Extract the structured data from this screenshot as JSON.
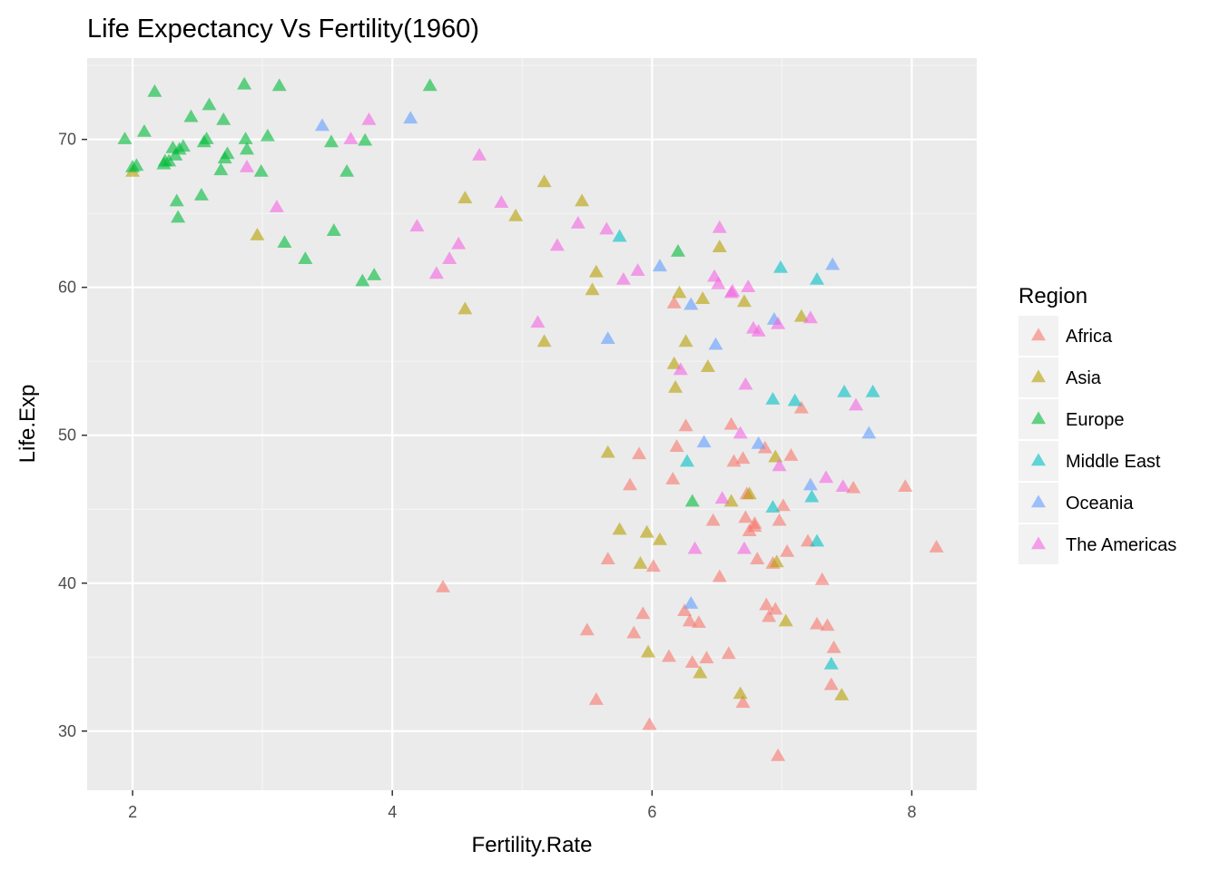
{
  "chart_data": {
    "type": "scatter",
    "title": "Life Expectancy Vs Fertility(1960)",
    "xlabel": "Fertility.Rate",
    "ylabel": "Life.Exp",
    "xlim": [
      1.65,
      8.5
    ],
    "ylim": [
      26,
      75.5
    ],
    "x_ticks": [
      2,
      4,
      6,
      8
    ],
    "y_ticks": [
      30,
      40,
      50,
      60,
      70
    ],
    "x_tick_labels": [
      "2",
      "4",
      "6",
      "8"
    ],
    "y_tick_labels": [
      "30",
      "40",
      "50",
      "60",
      "70"
    ],
    "grid": true,
    "marker": "triangle",
    "legend": {
      "title": "Region",
      "position": "right"
    },
    "series": [
      {
        "name": "Africa",
        "color": "#F8766D",
        "points": [
          [
            4.39,
            39.7
          ],
          [
            5.5,
            36.8
          ],
          [
            5.57,
            32.1
          ],
          [
            5.66,
            41.6
          ],
          [
            5.86,
            36.6
          ],
          [
            5.9,
            48.7
          ],
          [
            5.93,
            37.9
          ],
          [
            5.83,
            46.6
          ],
          [
            5.98,
            30.4
          ],
          [
            6.01,
            41.1
          ],
          [
            6.13,
            35.0
          ],
          [
            6.16,
            47.0
          ],
          [
            6.17,
            58.9
          ],
          [
            6.19,
            49.2
          ],
          [
            6.25,
            38.1
          ],
          [
            6.26,
            50.6
          ],
          [
            6.29,
            37.4
          ],
          [
            6.31,
            34.6
          ],
          [
            6.36,
            37.3
          ],
          [
            6.42,
            34.9
          ],
          [
            6.47,
            44.2
          ],
          [
            6.52,
            40.4
          ],
          [
            6.59,
            35.2
          ],
          [
            6.61,
            50.7
          ],
          [
            6.63,
            48.2
          ],
          [
            6.7,
            48.4
          ],
          [
            6.72,
            44.4
          ],
          [
            6.73,
            46.0
          ],
          [
            6.75,
            43.5
          ],
          [
            6.79,
            44.0
          ],
          [
            6.81,
            41.6
          ],
          [
            6.87,
            49.1
          ],
          [
            6.88,
            38.5
          ],
          [
            6.9,
            37.7
          ],
          [
            6.93,
            41.3
          ],
          [
            6.95,
            38.2
          ],
          [
            6.97,
            28.3
          ],
          [
            6.98,
            44.2
          ],
          [
            7.01,
            45.2
          ],
          [
            7.04,
            42.1
          ],
          [
            7.07,
            48.6
          ],
          [
            7.15,
            51.8
          ],
          [
            7.2,
            42.8
          ],
          [
            7.27,
            37.2
          ],
          [
            7.31,
            40.2
          ],
          [
            7.35,
            37.1
          ],
          [
            7.38,
            33.1
          ],
          [
            7.4,
            35.6
          ],
          [
            7.55,
            46.4
          ],
          [
            7.95,
            46.5
          ],
          [
            8.19,
            42.4
          ],
          [
            6.7,
            31.9
          ],
          [
            6.79,
            43.8
          ]
        ]
      },
      {
        "name": "Asia",
        "color": "#B79F00",
        "points": [
          [
            2.0,
            67.8
          ],
          [
            2.96,
            63.5
          ],
          [
            4.56,
            58.5
          ],
          [
            4.56,
            66.0
          ],
          [
            4.95,
            64.8
          ],
          [
            5.17,
            56.3
          ],
          [
            5.17,
            67.1
          ],
          [
            5.46,
            65.8
          ],
          [
            5.54,
            59.8
          ],
          [
            5.57,
            61.0
          ],
          [
            5.66,
            48.8
          ],
          [
            5.75,
            43.6
          ],
          [
            5.91,
            41.3
          ],
          [
            5.96,
            43.4
          ],
          [
            5.97,
            35.3
          ],
          [
            6.06,
            42.9
          ],
          [
            6.17,
            54.8
          ],
          [
            6.18,
            53.2
          ],
          [
            6.21,
            59.6
          ],
          [
            6.26,
            56.3
          ],
          [
            6.37,
            33.9
          ],
          [
            6.39,
            59.2
          ],
          [
            6.43,
            54.6
          ],
          [
            6.52,
            62.7
          ],
          [
            6.61,
            45.5
          ],
          [
            6.68,
            32.5
          ],
          [
            6.71,
            59.0
          ],
          [
            6.75,
            46.0
          ],
          [
            6.95,
            48.5
          ],
          [
            6.96,
            41.4
          ],
          [
            7.03,
            37.4
          ],
          [
            7.15,
            58.0
          ],
          [
            7.46,
            32.4
          ]
        ]
      },
      {
        "name": "Europe",
        "color": "#00BA38",
        "points": [
          [
            1.94,
            70.0
          ],
          [
            2.0,
            68.1
          ],
          [
            2.03,
            68.2
          ],
          [
            2.09,
            70.5
          ],
          [
            2.17,
            73.2
          ],
          [
            2.24,
            68.3
          ],
          [
            2.25,
            68.5
          ],
          [
            2.28,
            68.5
          ],
          [
            2.31,
            69.4
          ],
          [
            2.33,
            68.9
          ],
          [
            2.34,
            65.8
          ],
          [
            2.35,
            64.7
          ],
          [
            2.36,
            69.3
          ],
          [
            2.39,
            69.5
          ],
          [
            2.45,
            71.5
          ],
          [
            2.53,
            66.2
          ],
          [
            2.55,
            69.8
          ],
          [
            2.57,
            70.0
          ],
          [
            2.59,
            72.3
          ],
          [
            2.68,
            67.9
          ],
          [
            2.7,
            71.3
          ],
          [
            2.71,
            68.7
          ],
          [
            2.73,
            69.0
          ],
          [
            2.86,
            73.7
          ],
          [
            2.87,
            70.0
          ],
          [
            2.88,
            69.3
          ],
          [
            2.99,
            67.8
          ],
          [
            3.04,
            70.2
          ],
          [
            3.13,
            73.6
          ],
          [
            3.17,
            63.0
          ],
          [
            3.33,
            61.9
          ],
          [
            3.53,
            69.8
          ],
          [
            3.55,
            63.8
          ],
          [
            3.65,
            67.8
          ],
          [
            3.77,
            60.4
          ],
          [
            3.79,
            69.9
          ],
          [
            3.86,
            60.8
          ],
          [
            4.29,
            73.6
          ],
          [
            6.2,
            62.4
          ],
          [
            6.31,
            45.5
          ]
        ]
      },
      {
        "name": "Middle East",
        "color": "#00BFC4",
        "points": [
          [
            5.75,
            63.4
          ],
          [
            6.27,
            48.2
          ],
          [
            6.93,
            52.4
          ],
          [
            6.93,
            45.1
          ],
          [
            6.99,
            61.3
          ],
          [
            7.1,
            52.3
          ],
          [
            7.23,
            45.8
          ],
          [
            7.27,
            60.5
          ],
          [
            7.27,
            42.8
          ],
          [
            7.38,
            34.5
          ],
          [
            7.48,
            52.9
          ],
          [
            7.7,
            52.9
          ]
        ]
      },
      {
        "name": "Oceania",
        "color": "#619CFF",
        "points": [
          [
            3.46,
            70.9
          ],
          [
            4.14,
            71.4
          ],
          [
            5.66,
            56.5
          ],
          [
            6.06,
            61.4
          ],
          [
            6.3,
            58.8
          ],
          [
            6.3,
            38.6
          ],
          [
            6.4,
            49.5
          ],
          [
            6.49,
            56.1
          ],
          [
            6.82,
            49.4
          ],
          [
            6.94,
            57.8
          ],
          [
            7.22,
            46.6
          ],
          [
            7.39,
            61.5
          ],
          [
            7.67,
            50.1
          ]
        ]
      },
      {
        "name": "The Americas",
        "color": "#F564E3",
        "points": [
          [
            2.88,
            68.1
          ],
          [
            3.11,
            65.4
          ],
          [
            3.68,
            70.0
          ],
          [
            3.82,
            71.3
          ],
          [
            4.19,
            64.1
          ],
          [
            4.34,
            60.9
          ],
          [
            4.44,
            61.9
          ],
          [
            4.51,
            62.9
          ],
          [
            4.67,
            68.9
          ],
          [
            4.84,
            65.7
          ],
          [
            5.12,
            57.6
          ],
          [
            5.27,
            62.8
          ],
          [
            5.43,
            64.3
          ],
          [
            5.65,
            63.9
          ],
          [
            5.78,
            60.5
          ],
          [
            5.89,
            61.1
          ],
          [
            6.22,
            54.4
          ],
          [
            6.33,
            42.3
          ],
          [
            6.48,
            60.7
          ],
          [
            6.51,
            60.2
          ],
          [
            6.52,
            64.0
          ],
          [
            6.54,
            45.7
          ],
          [
            6.61,
            59.6
          ],
          [
            6.62,
            59.7
          ],
          [
            6.68,
            50.1
          ],
          [
            6.71,
            42.3
          ],
          [
            6.72,
            53.4
          ],
          [
            6.74,
            60.0
          ],
          [
            6.78,
            57.2
          ],
          [
            6.82,
            57.0
          ],
          [
            6.97,
            57.5
          ],
          [
            6.98,
            47.9
          ],
          [
            7.22,
            57.9
          ],
          [
            7.34,
            47.1
          ],
          [
            7.47,
            46.5
          ],
          [
            7.57,
            52.0
          ]
        ]
      }
    ]
  }
}
